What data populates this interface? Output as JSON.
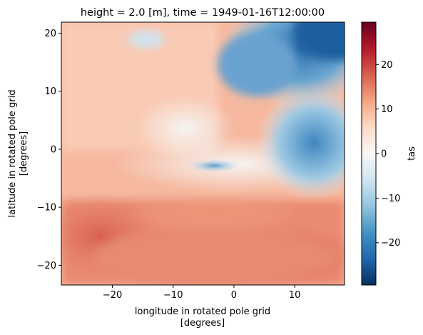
{
  "chart_data": {
    "type": "heatmap",
    "title": "height = 2.0 [m], time = 1949-01-16T12:00:00",
    "xlabel_line1": "longitude in rotated pole grid",
    "xlabel_line2": "[degrees]",
    "ylabel_line1": "latitude in rotated pole grid",
    "ylabel_line2": "[degrees]",
    "xlim": [
      -28.4,
      18.2
    ],
    "ylim": [
      -23.4,
      21.9
    ],
    "x_ticks": [
      -20,
      -10,
      0,
      10
    ],
    "y_ticks": [
      -20,
      -10,
      0,
      10,
      20
    ],
    "x_tick_labels": [
      "−20",
      "−10",
      "0",
      "10"
    ],
    "y_tick_labels": [
      "−20",
      "−10",
      "0",
      "10",
      "20"
    ],
    "colorbar": {
      "label": "tas",
      "vmin": -29.5,
      "vmax": 29.5,
      "colormap": "RdBu_r",
      "ticks": [
        -20,
        -10,
        0,
        10,
        20
      ],
      "tick_labels": [
        "−20",
        "−10",
        "0",
        "10",
        "20"
      ]
    },
    "colormap_stops": [
      "#053061",
      "#2166ac",
      "#4393c3",
      "#92c5de",
      "#d1e5f0",
      "#f7f7f7",
      "#fddbc7",
      "#f4a582",
      "#d6604d",
      "#b2182b",
      "#67001f"
    ],
    "legend": "none",
    "grid": false
  }
}
